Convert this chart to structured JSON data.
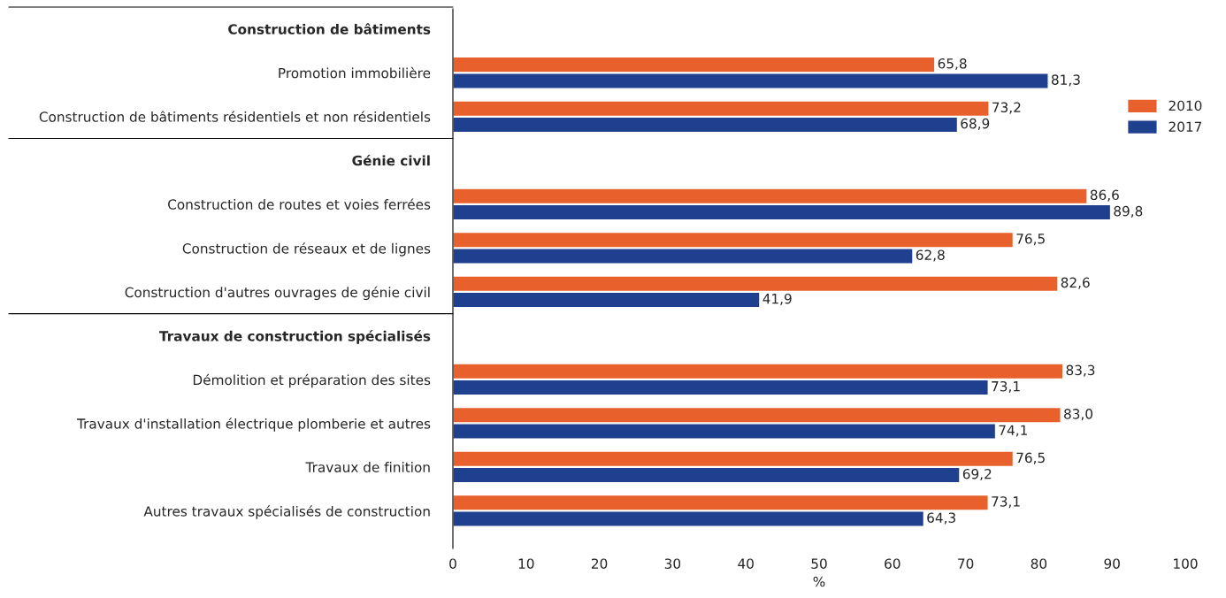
{
  "chart_data": {
    "type": "bar",
    "orientation": "horizontal",
    "xlabel": "%",
    "categories": [
      "Construction de bâtiments",
      "Promotion immobilière",
      "Construction de bâtiments résidentiels et non résidentiels",
      "Génie civil",
      "Construction de routes et voies ferrées",
      "Construction de réseaux et de lignes",
      "Construction d'autres ouvrages de génie civil",
      "Travaux de construction spécialisés",
      "Démolition et préparation des sites",
      "Travaux d'installation électrique plomberie et autres",
      "Travaux de finition",
      "Autres travaux spécialisés de construction"
    ],
    "series": [
      {
        "name": "2010",
        "color": "#e8602c",
        "values": [
          null,
          65.8,
          73.2,
          null,
          86.6,
          76.5,
          82.6,
          null,
          83.3,
          83.0,
          76.5,
          73.1
        ],
        "value_labels": [
          null,
          "65,8",
          "73,2",
          null,
          "86,6",
          "76,5",
          "82,6",
          null,
          "83,3",
          "83,0",
          "76,5",
          "73,1"
        ]
      },
      {
        "name": "2017",
        "color": "#1f3f8f",
        "values": [
          null,
          81.3,
          68.9,
          null,
          89.8,
          62.8,
          41.9,
          null,
          73.1,
          74.1,
          69.2,
          64.3
        ],
        "value_labels": [
          null,
          "81,3",
          "68,9",
          null,
          "89,8",
          "62,8",
          "41,9",
          null,
          "73,1",
          "74,1",
          "69,2",
          "64,3"
        ]
      }
    ],
    "xlim": [
      0,
      100
    ],
    "xticks": [
      0,
      10,
      20,
      30,
      40,
      50,
      60,
      70,
      80,
      90,
      100
    ],
    "grid": false,
    "legend": "right"
  }
}
